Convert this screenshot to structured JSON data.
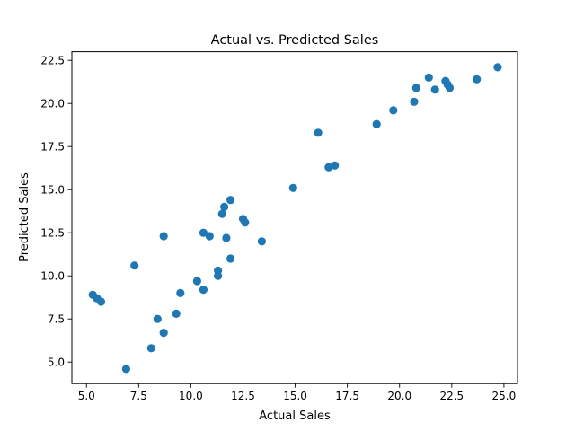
{
  "chart_data": {
    "type": "scatter",
    "title": "Actual vs. Predicted Sales",
    "xlabel": "Actual Sales",
    "ylabel": "Predicted Sales",
    "xlim": [
      4.3,
      25.65
    ],
    "ylim": [
      3.75,
      23.0
    ],
    "xticks": [
      5.0,
      7.5,
      10.0,
      12.5,
      15.0,
      17.5,
      20.0,
      22.5,
      25.0
    ],
    "xtick_labels": [
      "5.0",
      "7.5",
      "10.0",
      "12.5",
      "15.0",
      "17.5",
      "20.0",
      "22.5",
      "25.0"
    ],
    "yticks": [
      5.0,
      7.5,
      10.0,
      12.5,
      15.0,
      17.5,
      20.0,
      22.5
    ],
    "ytick_labels": [
      "5.0",
      "7.5",
      "10.0",
      "12.5",
      "15.0",
      "17.5",
      "20.0",
      "22.5"
    ],
    "grid": false,
    "legend": null,
    "marker_color": "#1f77b4",
    "series": [
      {
        "name": "Sales",
        "x": [
          5.3,
          5.5,
          5.7,
          6.9,
          7.3,
          8.1,
          8.4,
          8.7,
          8.7,
          9.3,
          9.5,
          10.3,
          10.6,
          10.6,
          10.9,
          11.3,
          11.3,
          11.5,
          11.6,
          11.7,
          11.9,
          11.9,
          12.5,
          12.6,
          13.4,
          14.9,
          16.1,
          16.6,
          16.9,
          18.9,
          19.7,
          20.7,
          20.8,
          21.4,
          21.7,
          22.2,
          22.3,
          22.4,
          23.7,
          24.7
        ],
        "y": [
          8.9,
          8.7,
          8.5,
          4.6,
          10.6,
          5.8,
          7.5,
          12.3,
          6.7,
          7.8,
          9.0,
          9.7,
          12.5,
          9.2,
          12.3,
          10.3,
          10.0,
          13.6,
          14.0,
          12.2,
          14.4,
          11.0,
          13.3,
          13.1,
          12.0,
          15.1,
          18.3,
          16.3,
          16.4,
          18.8,
          19.6,
          20.1,
          20.9,
          21.5,
          20.8,
          21.3,
          21.1,
          20.9,
          21.4,
          22.1
        ]
      }
    ]
  }
}
